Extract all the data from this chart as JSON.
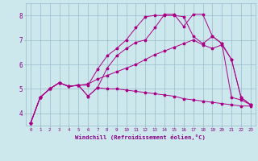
{
  "background_color": "#cce8ec",
  "grid_color": "#99bbcc",
  "line_color": "#aa0088",
  "marker": "*",
  "xlabel": "Windchill (Refroidissement éolien,°C)",
  "xlabel_color": "#880088",
  "tick_color": "#880088",
  "xlim": [
    -0.5,
    23.5
  ],
  "ylim": [
    3.5,
    8.5
  ],
  "yticks": [
    4,
    5,
    6,
    7,
    8
  ],
  "xticks": [
    0,
    1,
    2,
    3,
    4,
    5,
    6,
    7,
    8,
    9,
    10,
    11,
    12,
    13,
    14,
    15,
    16,
    17,
    18,
    19,
    20,
    21,
    22,
    23
  ],
  "lines": [
    {
      "x": [
        0,
        1,
        2,
        3,
        4,
        5,
        6,
        7,
        8,
        9,
        10,
        11,
        12,
        13,
        14,
        15,
        16,
        17,
        18,
        19,
        20,
        21,
        22,
        23
      ],
      "y": [
        3.6,
        4.65,
        5.0,
        5.25,
        5.1,
        5.15,
        4.7,
        5.05,
        5.0,
        5.0,
        4.95,
        4.9,
        4.85,
        4.8,
        4.75,
        4.7,
        4.6,
        4.55,
        4.5,
        4.45,
        4.4,
        4.35,
        4.3,
        4.3
      ]
    },
    {
      "x": [
        0,
        1,
        2,
        3,
        4,
        5,
        6,
        7,
        8,
        9,
        10,
        11,
        12,
        13,
        14,
        15,
        16,
        17,
        18,
        19,
        20,
        21,
        22,
        23
      ],
      "y": [
        3.6,
        4.65,
        5.0,
        5.25,
        5.1,
        5.15,
        5.2,
        5.4,
        5.55,
        5.7,
        5.85,
        6.0,
        6.2,
        6.4,
        6.55,
        6.7,
        6.85,
        7.0,
        6.8,
        6.65,
        6.8,
        6.2,
        4.65,
        4.35
      ]
    },
    {
      "x": [
        0,
        1,
        2,
        3,
        4,
        5,
        6,
        7,
        8,
        9,
        10,
        11,
        12,
        13,
        14,
        15,
        16,
        17,
        18,
        19,
        20,
        21,
        22,
        23
      ],
      "y": [
        3.6,
        4.65,
        5.0,
        5.25,
        5.1,
        5.15,
        5.15,
        5.8,
        6.35,
        6.65,
        7.0,
        7.5,
        7.95,
        8.0,
        8.0,
        8.0,
        7.95,
        7.15,
        6.85,
        7.15,
        6.85,
        6.2,
        4.65,
        4.35
      ]
    },
    {
      "x": [
        0,
        1,
        2,
        3,
        4,
        5,
        6,
        7,
        8,
        9,
        10,
        11,
        12,
        13,
        14,
        15,
        16,
        17,
        18,
        19,
        20,
        21,
        22,
        23
      ],
      "y": [
        3.6,
        4.65,
        5.0,
        5.25,
        5.1,
        5.15,
        4.7,
        5.05,
        5.85,
        6.35,
        6.65,
        6.9,
        7.0,
        7.5,
        8.05,
        8.05,
        7.55,
        8.05,
        8.05,
        7.15,
        6.85,
        4.65,
        4.55,
        4.35
      ]
    }
  ]
}
